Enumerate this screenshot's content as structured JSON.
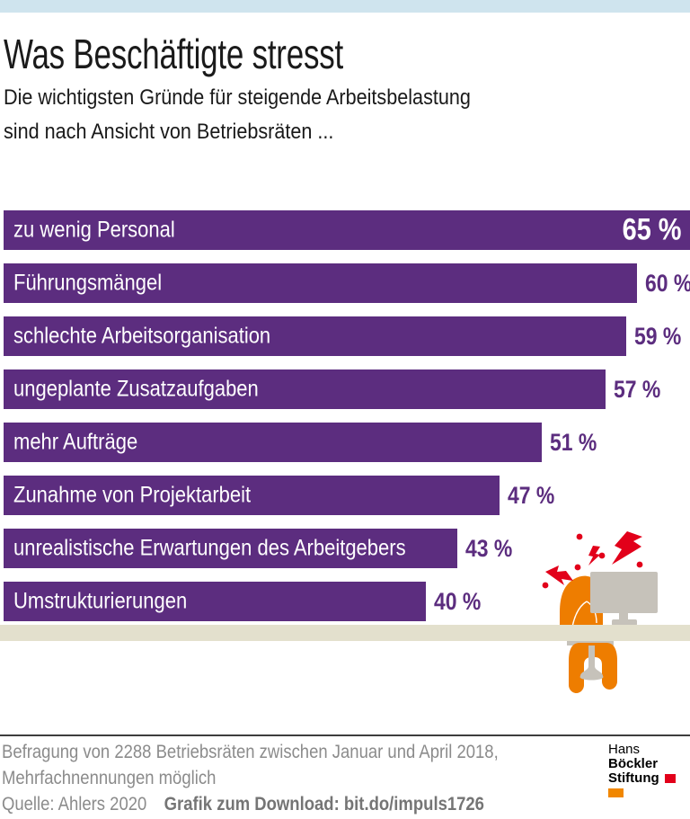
{
  "meta": {
    "stripe_color": "#cfe4ee",
    "background_color": "#ffffff"
  },
  "header": {
    "title": "Was Beschäftigte stresst",
    "subtitle_lines": [
      "Die wichtigsten Gründe für steigende Arbeitsbelastung",
      "sind nach Ansicht von Betriebsräten ..."
    ]
  },
  "chart_data": {
    "type": "bar",
    "orientation": "horizontal",
    "unit": "%",
    "xlim": [
      0,
      65
    ],
    "grid": false,
    "legend": "none",
    "bar_color": "#5c2d7f",
    "categories": [
      "zu wenig Personal",
      "Führungsmängel",
      "schlechte Arbeitsorganisation",
      "ungeplante Zusatzaufgaben",
      "mehr Aufträge",
      "Zunahme von Projektarbeit",
      "unrealistische Erwartungen des Arbeitgebers",
      "Umstrukturierungen"
    ],
    "values": [
      65,
      60,
      59,
      57,
      51,
      47,
      43,
      40
    ],
    "value_labels": [
      "65 %",
      "60 %",
      "59 %",
      "57 %",
      "51 %",
      "47 %",
      "43 %",
      "40 %"
    ],
    "value_label_position_first": "inside-right",
    "value_label_position_rest": "outside-right"
  },
  "illustration": {
    "name": "stressed-worker-at-desk",
    "colors": {
      "person": "#ee7d00",
      "monitor": "#c6c2ba",
      "desk": "#e3e0cd",
      "stress": "#e2001a"
    }
  },
  "footer": {
    "note_line1": "Befragung von 2288 Betriebsräten zwischen Januar und April 2018,",
    "note_line2": "Mehrfachnennungen möglich",
    "source": "Quelle: Ahlers 2020",
    "download": "Grafik zum Download: bit.do/impuls1726"
  },
  "logo": {
    "line1_regular": "Hans",
    "line1_bold": "Böckler",
    "line2_bold": "Stiftung",
    "square_colors": [
      "#e2001a",
      "#f18700"
    ]
  }
}
